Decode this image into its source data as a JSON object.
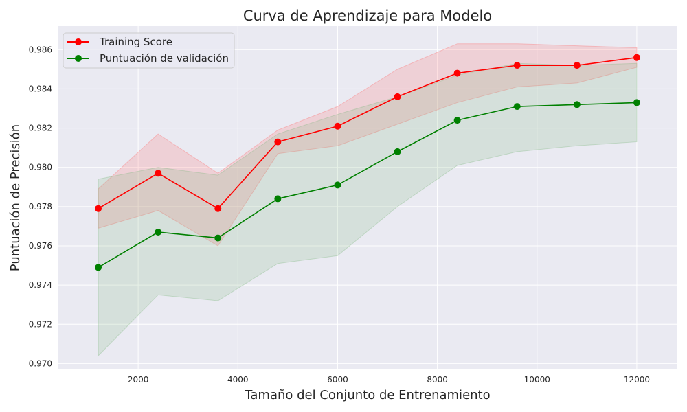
{
  "chart_data": {
    "type": "line",
    "title": "Curva de Aprendizaje para Modelo",
    "xlabel": "Tamaño del Conjunto de Entrenamiento",
    "ylabel": "Puntuación de Precisión",
    "xlim": [
      400,
      12800
    ],
    "ylim": [
      0.9697,
      0.9872
    ],
    "xticks": [
      2000,
      4000,
      6000,
      8000,
      10000,
      12000
    ],
    "xtick_labels": [
      "2000",
      "4000",
      "6000",
      "8000",
      "10000",
      "12000"
    ],
    "yticks": [
      0.97,
      0.972,
      0.974,
      0.976,
      0.978,
      0.98,
      0.982,
      0.984,
      0.986
    ],
    "ytick_labels": [
      "0.970",
      "0.972",
      "0.974",
      "0.976",
      "0.978",
      "0.980",
      "0.982",
      "0.984",
      "0.986"
    ],
    "grid": true,
    "legend_position": "top-left",
    "x": [
      1200,
      2400,
      3600,
      4800,
      6000,
      7200,
      8400,
      9600,
      10800,
      12000
    ],
    "series": [
      {
        "name": "Training Score",
        "color": "#ff0000",
        "band_color": "#ff6b6b",
        "values": [
          0.9779,
          0.9797,
          0.9779,
          0.9813,
          0.9821,
          0.9836,
          0.9848,
          0.9852,
          0.9852,
          0.9856
        ],
        "upper": [
          0.9789,
          0.9817,
          0.9797,
          0.9819,
          0.9831,
          0.985,
          0.9863,
          0.9863,
          0.9862,
          0.9861
        ],
        "lower": [
          0.9769,
          0.9778,
          0.976,
          0.9807,
          0.9811,
          0.9822,
          0.9833,
          0.9841,
          0.9843,
          0.9851
        ]
      },
      {
        "name": "Puntuación de validación",
        "color": "#008000",
        "band_color": "#80b880",
        "values": [
          0.9749,
          0.9767,
          0.9764,
          0.9784,
          0.9791,
          0.9808,
          0.9824,
          0.9831,
          0.9832,
          0.9833
        ],
        "upper": [
          0.9794,
          0.98,
          0.9796,
          0.9817,
          0.9827,
          0.9836,
          0.9847,
          0.9853,
          0.9852,
          0.9853
        ],
        "lower": [
          0.9704,
          0.9735,
          0.9732,
          0.9751,
          0.9755,
          0.978,
          0.9801,
          0.9808,
          0.9811,
          0.9813
        ]
      }
    ]
  }
}
